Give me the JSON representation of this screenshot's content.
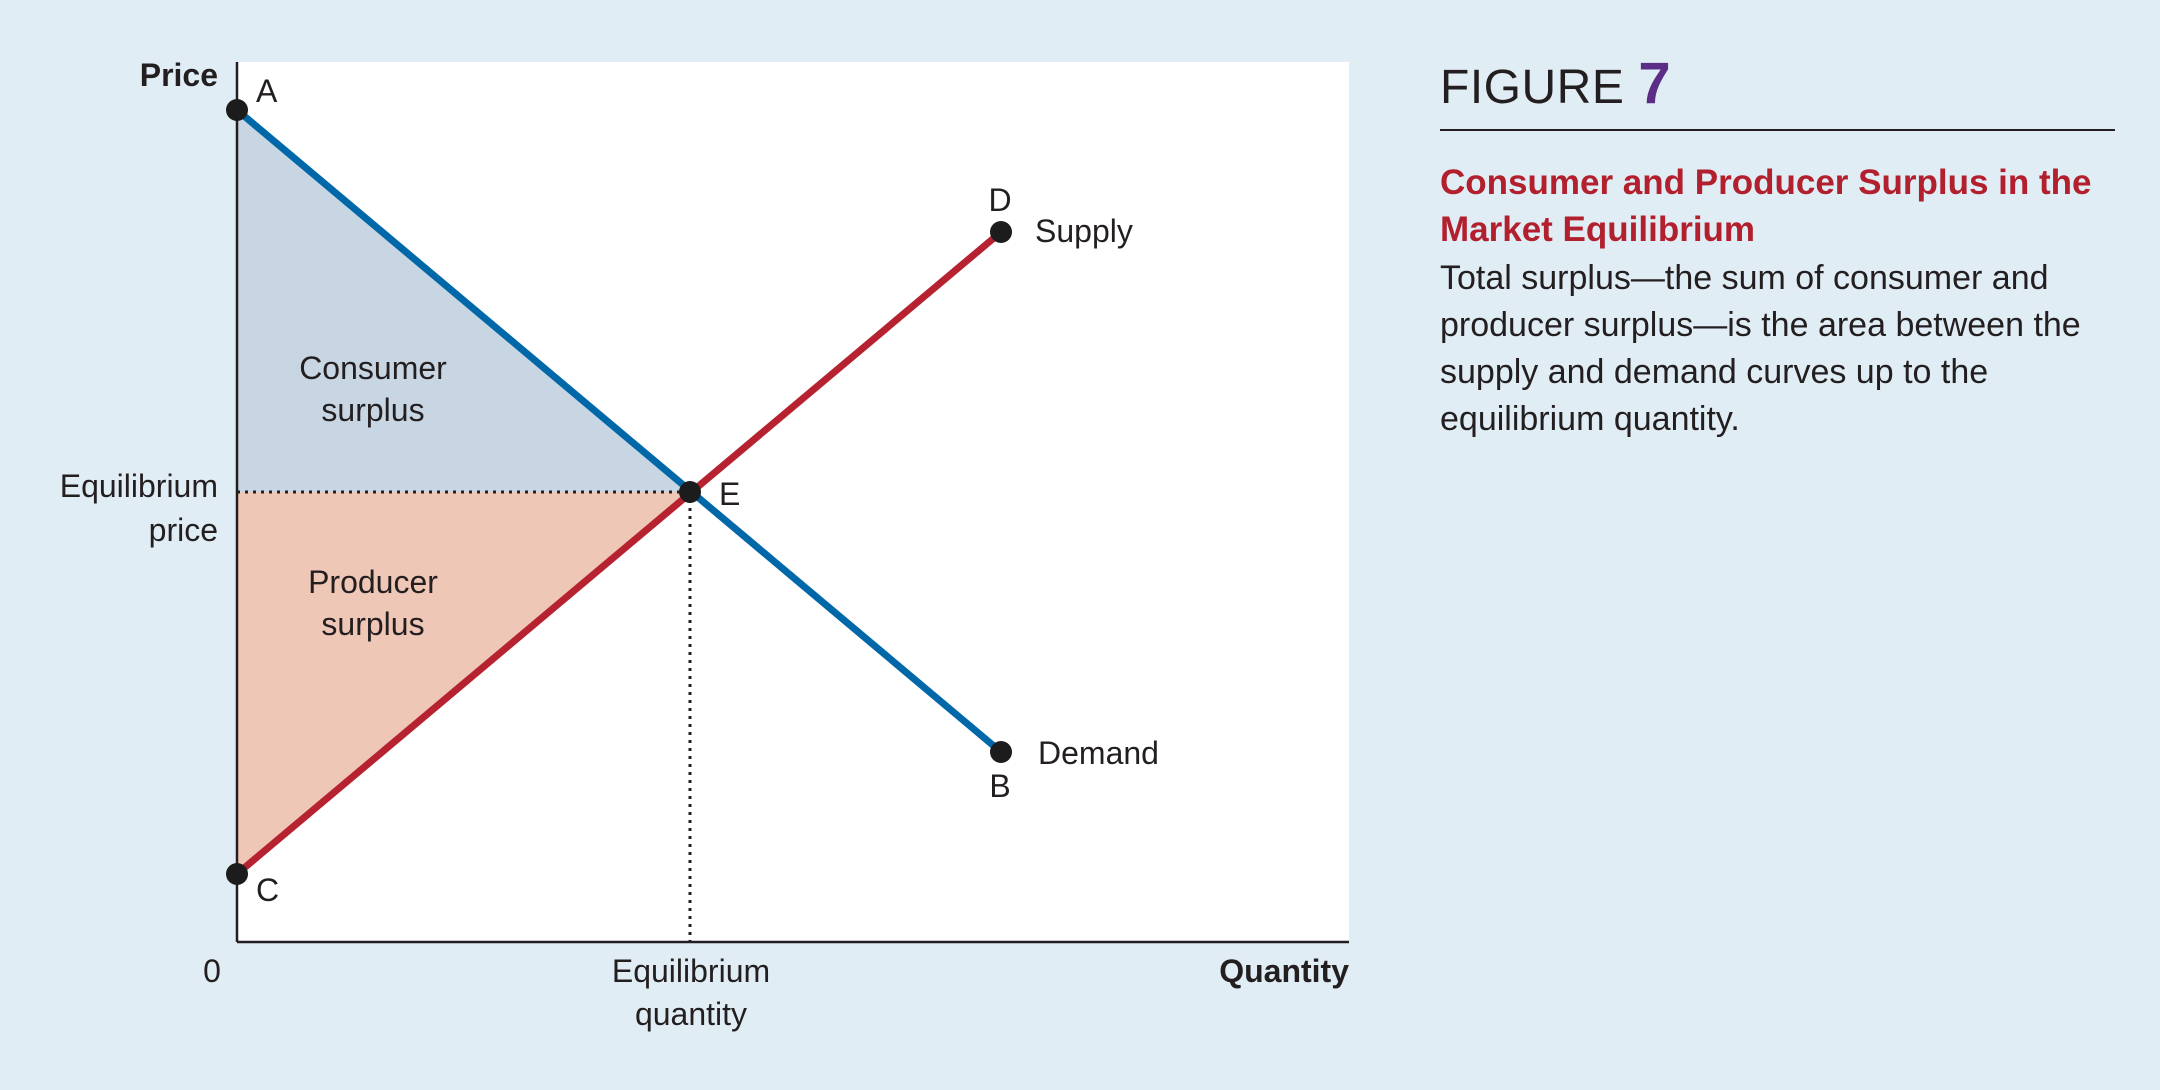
{
  "figure": {
    "label": "FIGURE",
    "number": "7",
    "title": "Consumer and Producer Surplus in the Market Equilibrium",
    "caption": "Total surplus—the sum of consumer and producer surplus—is the area between the supply and demand curves up to the equilibrium quantity."
  },
  "diagram": {
    "axes": {
      "y_label": "Price",
      "x_label": "Quantity",
      "origin_label": "0"
    },
    "equilibrium_price_label": [
      "Equilibrium",
      "price"
    ],
    "equilibrium_quantity_label": [
      "Equilibrium",
      "quantity"
    ],
    "curves": {
      "supply_label": "Supply",
      "demand_label": "Demand",
      "supply_color": "#b72231",
      "demand_color": "#0068a8"
    },
    "areas": {
      "consumer_surplus": [
        "Consumer",
        "surplus"
      ],
      "producer_surplus": [
        "Producer",
        "surplus"
      ],
      "consumer_color": "#c8d5e3",
      "producer_color": "#efc7b7"
    },
    "points": {
      "a": "A",
      "b": "B",
      "c": "C",
      "d": "D",
      "e": "E"
    }
  }
}
